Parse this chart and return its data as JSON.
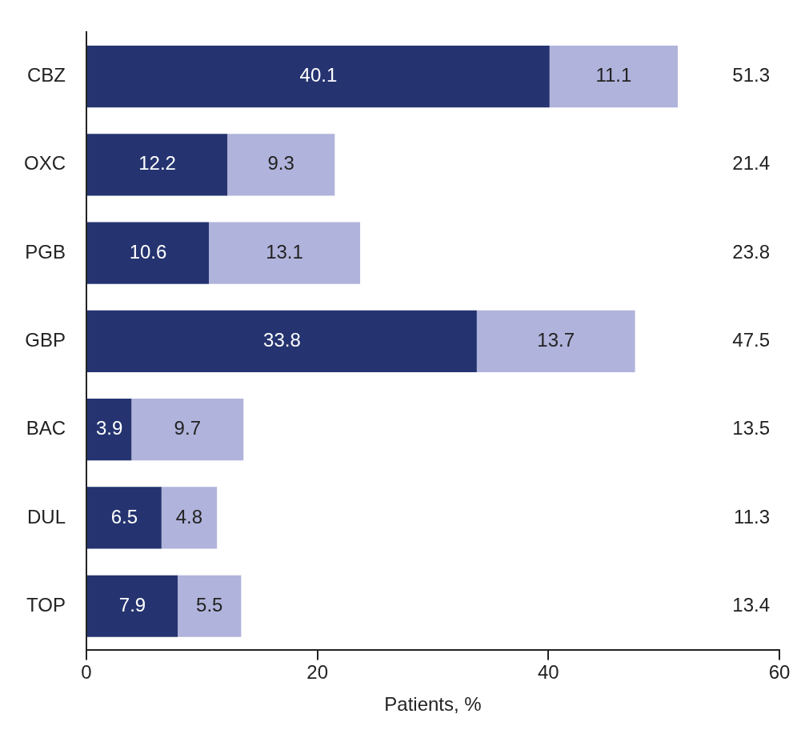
{
  "chart_data": {
    "type": "bar",
    "orientation": "horizontal",
    "stacked": true,
    "xlabel": "Patients, %",
    "categories": [
      "CBZ",
      "OXC",
      "PGB",
      "GBP",
      "BAC",
      "DUL",
      "TOP"
    ],
    "series": [
      {
        "color": "#253470",
        "values": [
          40.1,
          12.2,
          10.6,
          33.8,
          3.9,
          6.5,
          7.9
        ]
      },
      {
        "color": "#b0b3db",
        "values": [
          11.1,
          9.3,
          13.1,
          13.7,
          9.7,
          4.8,
          5.5
        ]
      }
    ],
    "xlim": [
      0,
      60
    ],
    "xticks": [
      0,
      20,
      40,
      60
    ],
    "data_labels": true,
    "annotations": [
      "51.3",
      "21.4",
      "23.8",
      "47.5",
      "13.5",
      "11.3",
      "13.4"
    ],
    "grid": false,
    "legend": false
  }
}
